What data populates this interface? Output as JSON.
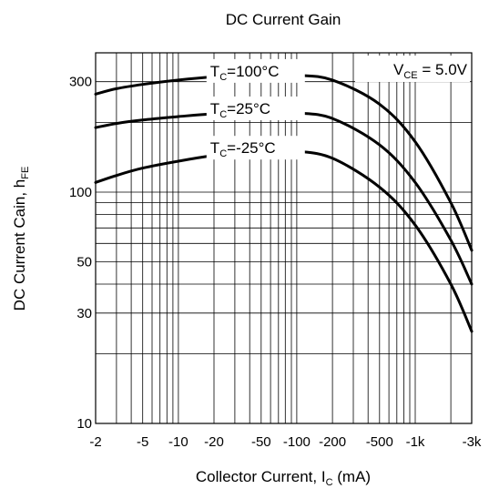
{
  "chart_data": {
    "type": "line",
    "title": "DC Current Gain",
    "xlabel": {
      "main": "Collector Current, I",
      "sub": "C",
      "unit": " (mA)"
    },
    "ylabel": {
      "main": "DC Current Cain, h",
      "sub": "FE"
    },
    "x_scale": "log",
    "y_scale": "log",
    "xlim": [
      2,
      3000
    ],
    "ylim": [
      10,
      400
    ],
    "grid": true,
    "x_ticks": [
      {
        "value": 2,
        "label": "-2"
      },
      {
        "value": 5,
        "label": "-5"
      },
      {
        "value": 10,
        "label": "-10"
      },
      {
        "value": 20,
        "label": "-20"
      },
      {
        "value": 50,
        "label": "-50"
      },
      {
        "value": 100,
        "label": "-100"
      },
      {
        "value": 200,
        "label": "-200"
      },
      {
        "value": 500,
        "label": "-500"
      },
      {
        "value": 1000,
        "label": "-1k"
      },
      {
        "value": 3000,
        "label": "-3k"
      }
    ],
    "y_ticks": [
      {
        "value": 10,
        "label": "10"
      },
      {
        "value": 30,
        "label": "30"
      },
      {
        "value": 50,
        "label": "50"
      },
      {
        "value": 100,
        "label": "100"
      },
      {
        "value": 300,
        "label": "300"
      }
    ],
    "annotation": {
      "main": "V",
      "sub": "CE",
      "rest": " = 5.0V"
    },
    "series": [
      {
        "name": {
          "main": "T",
          "sub": "C",
          "rest": "=100°C"
        },
        "x": [
          2,
          3,
          5,
          10,
          20,
          50,
          100,
          200,
          500,
          1000,
          2000,
          3000
        ],
        "values": [
          265,
          280,
          292,
          305,
          315,
          322,
          320,
          305,
          240,
          165,
          90,
          56
        ]
      },
      {
        "name": {
          "main": "T",
          "sub": "C",
          "rest": "=25°C"
        },
        "x": [
          2,
          3,
          5,
          10,
          20,
          50,
          100,
          200,
          500,
          1000,
          2000,
          3000
        ],
        "values": [
          190,
          198,
          205,
          212,
          218,
          222,
          220,
          208,
          160,
          110,
          62,
          40
        ]
      },
      {
        "name": {
          "main": "T",
          "sub": "C",
          "rest": "=-25°C"
        },
        "x": [
          2,
          3,
          5,
          10,
          20,
          50,
          100,
          200,
          500,
          1000,
          2000,
          3000
        ],
        "values": [
          110,
          118,
          127,
          136,
          144,
          150,
          150,
          140,
          105,
          72,
          40,
          25
        ]
      }
    ]
  }
}
